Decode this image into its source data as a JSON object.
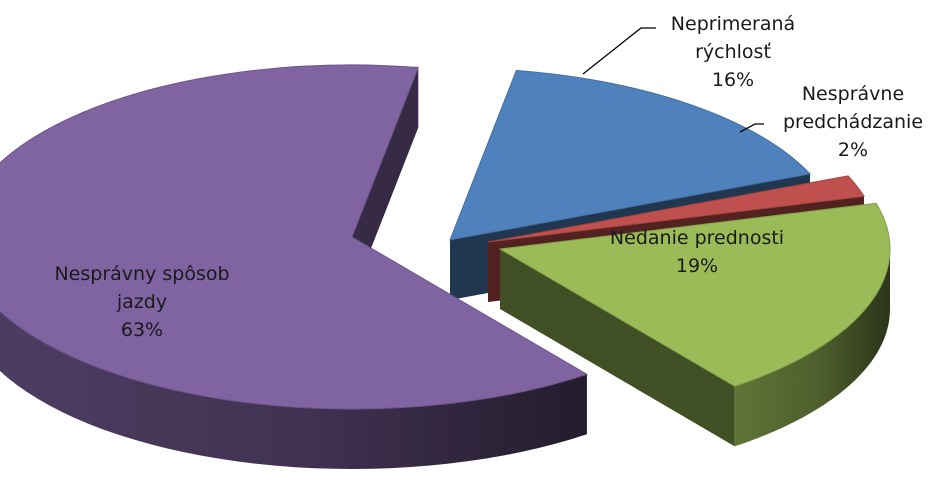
{
  "chart_data": {
    "type": "pie",
    "style": "3d-exploded",
    "title": "",
    "legend": "none",
    "slices": [
      {
        "name": "Neprimeraná rýchlosť",
        "label_lines": [
          "Neprimeraná",
          "rýchlosť"
        ],
        "value": 16,
        "value_label": "16%",
        "color": "#4f81bd"
      },
      {
        "name": "Nesprávne predchádzanie",
        "label_lines": [
          "Nesprávne",
          "predchádzanie"
        ],
        "value": 2,
        "value_label": "2%",
        "color": "#c0504d"
      },
      {
        "name": "Nedanie prednosti",
        "label_lines": [
          "Nedanie prednosti"
        ],
        "value": 19,
        "value_label": "19%",
        "color": "#9bbb59"
      },
      {
        "name": "Nesprávny spôsob jazdy",
        "label_lines": [
          "Nesprávny spôsob",
          "jazdy"
        ],
        "value": 63,
        "value_label": "63%",
        "color": "#8064a2"
      }
    ]
  }
}
